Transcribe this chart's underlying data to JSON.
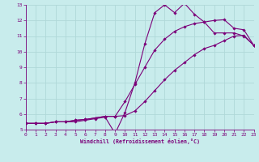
{
  "xlabel": "Windchill (Refroidissement éolien,°C)",
  "xlim": [
    0,
    23
  ],
  "ylim": [
    5,
    13
  ],
  "xticks": [
    0,
    1,
    2,
    3,
    4,
    5,
    6,
    7,
    8,
    9,
    10,
    11,
    12,
    13,
    14,
    15,
    16,
    17,
    18,
    19,
    20,
    21,
    22,
    23
  ],
  "yticks": [
    5,
    6,
    7,
    8,
    9,
    10,
    11,
    12,
    13
  ],
  "background_color": "#c8ecec",
  "grid_color": "#b0d8d8",
  "line_color": "#7b0079",
  "line1_x": [
    0,
    1,
    2,
    3,
    4,
    5,
    6,
    7,
    8,
    9,
    10,
    11,
    12,
    13,
    14,
    15,
    16,
    17,
    18,
    19,
    20,
    21,
    22,
    23
  ],
  "line1_y": [
    5.4,
    5.4,
    5.4,
    5.5,
    5.5,
    5.5,
    5.6,
    5.7,
    5.8,
    4.75,
    6.1,
    8.0,
    10.5,
    12.5,
    13.0,
    12.5,
    13.1,
    12.4,
    11.9,
    11.2,
    11.2,
    11.2,
    11.0,
    10.4
  ],
  "line2_x": [
    0,
    1,
    2,
    3,
    4,
    5,
    6,
    7,
    8,
    9,
    10,
    11,
    12,
    13,
    14,
    15,
    16,
    17,
    18,
    19,
    20,
    21,
    22,
    23
  ],
  "line2_y": [
    5.4,
    5.4,
    5.4,
    5.5,
    5.5,
    5.6,
    5.65,
    5.75,
    5.85,
    5.85,
    6.8,
    7.9,
    9.0,
    10.1,
    10.8,
    11.3,
    11.6,
    11.8,
    11.9,
    12.0,
    12.05,
    11.5,
    11.4,
    10.4
  ],
  "line3_x": [
    0,
    1,
    2,
    3,
    4,
    5,
    6,
    7,
    8,
    9,
    10,
    11,
    12,
    13,
    14,
    15,
    16,
    17,
    18,
    19,
    20,
    21,
    22,
    23
  ],
  "line3_y": [
    5.4,
    5.4,
    5.4,
    5.5,
    5.5,
    5.6,
    5.65,
    5.75,
    5.85,
    5.85,
    5.9,
    6.2,
    6.8,
    7.5,
    8.2,
    8.8,
    9.3,
    9.8,
    10.2,
    10.4,
    10.7,
    11.0,
    11.05,
    10.4
  ]
}
